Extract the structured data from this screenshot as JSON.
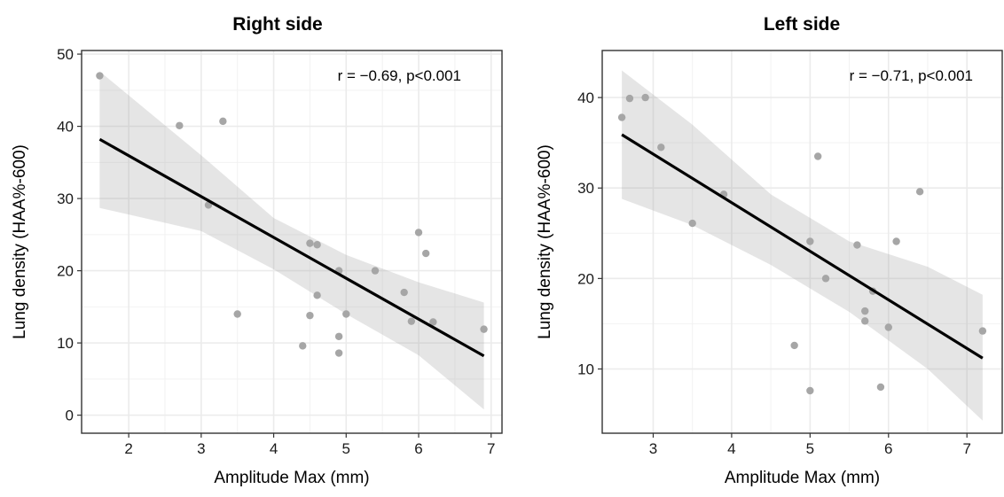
{
  "chart_data": [
    {
      "type": "scatter",
      "title": "Right side",
      "xlabel": "Amplitude Max (mm)",
      "ylabel": "Lung density (HAA%-600)",
      "xlim": [
        1.35,
        7.15
      ],
      "ylim": [
        -2.5,
        50.5
      ],
      "xticks": [
        2,
        3,
        4,
        5,
        6,
        7
      ],
      "yticks": [
        0,
        10,
        20,
        30,
        40,
        50
      ],
      "grid": true,
      "annotation": "r = −0.69, p<0.001",
      "points": [
        [
          1.6,
          47.0
        ],
        [
          2.7,
          40.1
        ],
        [
          3.1,
          29.1
        ],
        [
          3.3,
          40.7
        ],
        [
          3.5,
          14.0
        ],
        [
          4.4,
          9.6
        ],
        [
          4.5,
          23.8
        ],
        [
          4.5,
          13.8
        ],
        [
          4.6,
          23.6
        ],
        [
          4.6,
          16.6
        ],
        [
          4.9,
          20.0
        ],
        [
          4.9,
          10.9
        ],
        [
          4.9,
          8.6
        ],
        [
          5.0,
          14.0
        ],
        [
          5.4,
          20.0
        ],
        [
          5.8,
          17.0
        ],
        [
          5.9,
          13.0
        ],
        [
          6.0,
          25.3
        ],
        [
          6.1,
          22.4
        ],
        [
          6.2,
          12.9
        ],
        [
          6.9,
          11.9
        ]
      ],
      "fit": {
        "x": [
          1.6,
          6.9
        ],
        "y": [
          38.2,
          8.2
        ]
      },
      "ci_band": {
        "x": [
          1.6,
          3.0,
          4.0,
          5.0,
          6.0,
          6.9
        ],
        "lower": [
          28.7,
          25.5,
          20.2,
          14.0,
          8.3,
          0.8
        ],
        "upper": [
          47.6,
          36.0,
          27.3,
          22.2,
          18.4,
          15.6
        ]
      }
    },
    {
      "type": "scatter",
      "title": "Left side",
      "xlabel": "Amplitude Max (mm)",
      "ylabel": "Lung density (HAA%-600)",
      "xlim": [
        2.35,
        7.45
      ],
      "ylim": [
        2.9,
        45.2
      ],
      "xticks": [
        3,
        4,
        5,
        6,
        7
      ],
      "yticks": [
        10,
        20,
        30,
        40
      ],
      "grid": true,
      "annotation": "r = −0.71, p<0.001",
      "points": [
        [
          2.6,
          37.8
        ],
        [
          2.7,
          39.9
        ],
        [
          2.9,
          40.0
        ],
        [
          3.1,
          34.5
        ],
        [
          3.5,
          26.1
        ],
        [
          3.9,
          29.3
        ],
        [
          4.8,
          12.6
        ],
        [
          5.0,
          24.1
        ],
        [
          5.0,
          7.6
        ],
        [
          5.1,
          33.5
        ],
        [
          5.2,
          20.0
        ],
        [
          5.6,
          23.7
        ],
        [
          5.7,
          16.4
        ],
        [
          5.7,
          15.3
        ],
        [
          5.8,
          18.6
        ],
        [
          5.9,
          8.0
        ],
        [
          6.0,
          14.6
        ],
        [
          6.1,
          24.1
        ],
        [
          6.4,
          29.6
        ],
        [
          7.2,
          14.2
        ]
      ],
      "fit": {
        "x": [
          2.6,
          7.2
        ],
        "y": [
          35.9,
          11.2
        ]
      },
      "ci_band": {
        "x": [
          2.6,
          3.5,
          4.5,
          5.5,
          6.5,
          7.2
        ],
        "lower": [
          28.8,
          25.9,
          21.5,
          16.3,
          10.0,
          4.3
        ],
        "upper": [
          43.0,
          37.0,
          29.3,
          24.1,
          21.3,
          18.2
        ]
      }
    }
  ]
}
